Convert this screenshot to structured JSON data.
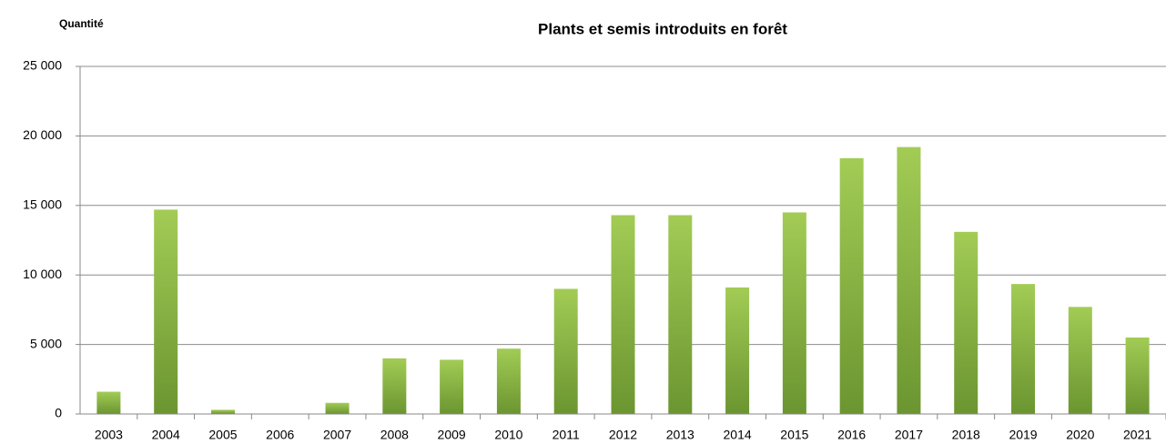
{
  "chart_data": {
    "type": "bar",
    "title": "Plants et semis introduits en forêt",
    "y_label": "Quantité",
    "categories": [
      "2003",
      "2004",
      "2005",
      "2006",
      "2007",
      "2008",
      "2009",
      "2010",
      "2011",
      "2012",
      "2013",
      "2014",
      "2015",
      "2016",
      "2017",
      "2018",
      "2019",
      "2020",
      "2021"
    ],
    "values": [
      1600,
      14700,
      300,
      0,
      800,
      4000,
      3900,
      4700,
      9000,
      14300,
      14300,
      9100,
      14500,
      18400,
      19200,
      13100,
      9350,
      7700,
      5500
    ],
    "color": "#8ab843",
    "ylim": [
      0,
      25000
    ],
    "yticks": [
      0,
      {
        "value": 5000,
        "label": "5 000"
      },
      {
        "value": 10000,
        "label": "10 000"
      },
      {
        "value": 15000,
        "label": "15 000"
      },
      {
        "value": 20000,
        "label": "20 000"
      },
      {
        "value": 25000,
        "label": "25 000"
      }
    ],
    "grid": true
  }
}
